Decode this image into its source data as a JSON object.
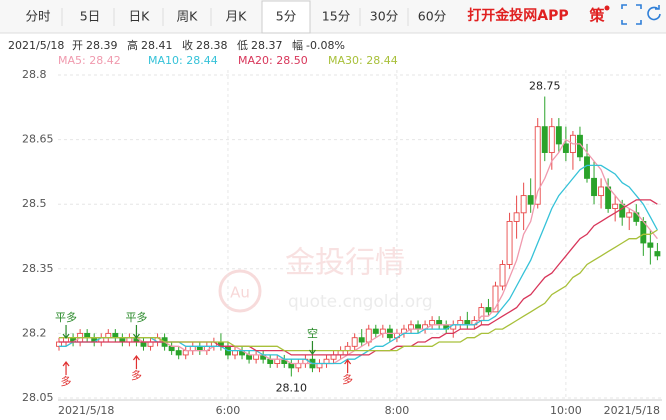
{
  "tabs": [
    "分时",
    "5日",
    "日K",
    "周K",
    "月K",
    "5分",
    "15分",
    "30分",
    "60分"
  ],
  "app_link": "打开金投网APP",
  "strategy": "策",
  "info": {
    "date": "2021/5/18",
    "items": [
      {
        "label": "开",
        "value": "28.39"
      },
      {
        "label": "高",
        "value": "28.41"
      },
      {
        "label": "收",
        "value": "28.38"
      },
      {
        "label": "低",
        "value": "28.37"
      },
      {
        "label": "幅",
        "value": "-0.08%"
      }
    ]
  },
  "watermark": {
    "logo": "Au",
    "brand": "金投行情",
    "url": "quote.cngold.org"
  },
  "chart_data": {
    "type": "candlestick",
    "up_color": "#e84a4a",
    "down_color": "#2aa32a",
    "grid": true,
    "ylim": [
      28.05,
      28.8
    ],
    "yticks": [
      {
        "value": 28.8,
        "label": "28.8"
      },
      28.65,
      {
        "value": 28.5,
        "label": "28.5"
      },
      28.35,
      {
        "value": 28.2,
        "label": "28.2"
      },
      28.05
    ],
    "categories": [
      "2021/5/18",
      null,
      null,
      null,
      null,
      null,
      null,
      null,
      null,
      null,
      null,
      null,
      null,
      null,
      null,
      null,
      null,
      null,
      null,
      null,
      null,
      null,
      null,
      null,
      "6:00",
      null,
      null,
      null,
      null,
      null,
      null,
      null,
      null,
      null,
      null,
      null,
      null,
      null,
      null,
      null,
      null,
      null,
      null,
      null,
      null,
      null,
      null,
      null,
      "8:00",
      null,
      null,
      null,
      null,
      null,
      null,
      null,
      null,
      null,
      null,
      null,
      null,
      null,
      null,
      null,
      null,
      null,
      null,
      null,
      null,
      null,
      null,
      null,
      "10:00",
      null,
      null,
      null,
      null,
      null,
      null,
      null,
      null,
      null,
      null,
      null,
      null,
      "2021/5/18"
    ],
    "open": [
      28.17,
      28.18,
      28.19,
      28.18,
      28.2,
      28.19,
      28.18,
      28.19,
      28.2,
      28.19,
      28.18,
      28.19,
      28.18,
      28.17,
      28.18,
      28.19,
      28.17,
      28.16,
      28.15,
      28.16,
      28.17,
      28.16,
      28.17,
      28.18,
      28.17,
      28.15,
      28.16,
      28.15,
      28.14,
      28.15,
      28.14,
      28.13,
      28.14,
      28.13,
      28.12,
      28.13,
      28.14,
      28.12,
      28.13,
      28.14,
      28.15,
      28.16,
      28.17,
      28.19,
      28.18,
      28.21,
      28.2,
      28.21,
      28.19,
      28.2,
      28.21,
      28.22,
      28.21,
      28.22,
      28.23,
      28.22,
      28.21,
      28.22,
      28.23,
      28.22,
      28.23,
      28.26,
      28.25,
      28.31,
      28.36,
      28.46,
      28.48,
      28.52,
      28.5,
      28.68,
      28.62,
      28.68,
      28.64,
      28.62,
      28.66,
      28.61,
      28.56,
      28.52,
      28.54,
      28.49,
      28.5,
      28.47,
      28.48,
      28.46,
      28.41,
      28.39
    ],
    "high": [
      28.19,
      28.2,
      28.2,
      28.21,
      28.21,
      28.2,
      28.2,
      28.21,
      28.21,
      28.2,
      28.2,
      28.21,
      28.19,
      28.19,
      28.2,
      28.2,
      28.18,
      28.17,
      28.17,
      28.18,
      28.18,
      28.18,
      28.19,
      28.2,
      28.18,
      28.17,
      28.17,
      28.16,
      28.16,
      28.16,
      28.15,
      28.15,
      28.15,
      28.14,
      28.14,
      28.15,
      28.15,
      28.14,
      28.15,
      28.16,
      28.17,
      28.18,
      28.2,
      28.21,
      28.22,
      28.22,
      28.22,
      28.22,
      28.21,
      28.22,
      28.23,
      28.23,
      28.23,
      28.24,
      28.24,
      28.23,
      28.23,
      28.24,
      28.25,
      28.24,
      28.27,
      28.28,
      28.32,
      28.37,
      28.48,
      28.52,
      28.55,
      28.56,
      28.7,
      28.75,
      28.7,
      28.7,
      28.68,
      28.67,
      28.68,
      28.64,
      28.6,
      28.56,
      28.56,
      28.52,
      28.51,
      28.49,
      28.5,
      28.47,
      28.44,
      28.41
    ],
    "low": [
      28.16,
      28.17,
      28.17,
      28.17,
      28.18,
      28.17,
      28.17,
      28.18,
      28.18,
      28.17,
      28.17,
      28.17,
      28.16,
      28.16,
      28.17,
      28.16,
      28.15,
      28.14,
      28.14,
      28.15,
      28.15,
      28.15,
      28.16,
      28.16,
      28.14,
      28.14,
      28.14,
      28.13,
      28.13,
      28.13,
      28.12,
      28.12,
      28.12,
      28.1,
      28.11,
      28.12,
      28.11,
      28.11,
      28.12,
      28.13,
      28.14,
      28.15,
      28.16,
      28.17,
      28.17,
      28.19,
      28.19,
      28.18,
      28.18,
      28.19,
      28.2,
      28.2,
      28.2,
      28.21,
      28.21,
      28.2,
      28.19,
      28.21,
      28.21,
      28.21,
      28.22,
      28.24,
      28.25,
      28.3,
      28.35,
      28.42,
      28.44,
      28.48,
      28.49,
      28.6,
      28.58,
      28.62,
      28.6,
      28.58,
      28.6,
      28.55,
      28.5,
      28.49,
      28.48,
      28.46,
      28.45,
      28.44,
      28.45,
      28.38,
      28.36,
      28.37
    ],
    "close": [
      28.18,
      28.19,
      28.18,
      28.2,
      28.19,
      28.18,
      28.19,
      28.2,
      28.19,
      28.18,
      28.19,
      28.18,
      28.17,
      28.18,
      28.19,
      28.17,
      28.16,
      28.15,
      28.16,
      28.17,
      28.16,
      28.17,
      28.18,
      28.17,
      28.15,
      28.16,
      28.15,
      28.14,
      28.15,
      28.14,
      28.13,
      28.14,
      28.13,
      28.12,
      28.13,
      28.14,
      28.12,
      28.13,
      28.14,
      28.15,
      28.16,
      28.17,
      28.19,
      28.18,
      28.21,
      28.2,
      28.21,
      28.19,
      28.2,
      28.21,
      28.22,
      28.21,
      28.22,
      28.23,
      28.22,
      28.21,
      28.22,
      28.23,
      28.22,
      28.23,
      28.26,
      28.25,
      28.31,
      28.36,
      28.46,
      28.48,
      28.52,
      28.5,
      28.68,
      28.62,
      28.68,
      28.64,
      28.62,
      28.66,
      28.61,
      28.56,
      28.52,
      28.54,
      28.49,
      28.5,
      28.47,
      28.48,
      28.46,
      28.41,
      28.4,
      28.38
    ],
    "series": [
      {
        "name": "MA5: 28.42",
        "color": "#f09aae",
        "values": [
          28.18,
          28.18,
          28.18,
          28.19,
          28.19,
          28.19,
          28.19,
          28.19,
          28.19,
          28.19,
          28.19,
          28.19,
          28.18,
          28.18,
          28.18,
          28.18,
          28.17,
          28.17,
          28.16,
          28.16,
          28.16,
          28.16,
          28.17,
          28.17,
          28.17,
          28.17,
          28.16,
          28.15,
          28.15,
          28.15,
          28.14,
          28.14,
          28.14,
          28.13,
          28.13,
          28.13,
          28.13,
          28.13,
          28.13,
          28.13,
          28.14,
          28.15,
          28.16,
          28.17,
          28.18,
          28.19,
          28.2,
          28.2,
          28.2,
          28.2,
          28.21,
          28.21,
          28.21,
          28.22,
          28.22,
          28.22,
          28.22,
          28.22,
          28.22,
          28.22,
          28.24,
          28.24,
          28.26,
          28.29,
          28.33,
          28.37,
          28.43,
          28.46,
          28.53,
          28.56,
          28.6,
          28.62,
          28.65,
          28.64,
          28.64,
          28.62,
          28.6,
          28.58,
          28.54,
          28.52,
          28.5,
          28.49,
          28.48,
          28.46,
          28.44,
          28.42
        ]
      },
      {
        "name": "MA10: 28.44",
        "color": "#35c2d8",
        "values": [
          28.17,
          28.17,
          28.18,
          28.18,
          28.18,
          28.18,
          28.19,
          28.19,
          28.19,
          28.19,
          28.19,
          28.19,
          28.19,
          28.19,
          28.18,
          28.18,
          28.18,
          28.18,
          28.17,
          28.17,
          28.17,
          28.17,
          28.17,
          28.17,
          28.16,
          28.16,
          28.16,
          28.16,
          28.16,
          28.15,
          28.15,
          28.15,
          28.14,
          28.14,
          28.14,
          28.14,
          28.13,
          28.13,
          28.13,
          28.13,
          28.13,
          28.14,
          28.14,
          28.15,
          28.16,
          28.17,
          28.17,
          28.18,
          28.19,
          28.2,
          28.2,
          28.2,
          28.21,
          28.21,
          28.21,
          28.21,
          28.22,
          28.22,
          28.22,
          28.22,
          28.23,
          28.23,
          28.24,
          28.26,
          28.28,
          28.31,
          28.34,
          28.37,
          28.41,
          28.45,
          28.49,
          28.52,
          28.54,
          28.56,
          28.58,
          28.59,
          28.59,
          28.59,
          28.58,
          28.57,
          28.55,
          28.54,
          28.52,
          28.5,
          28.47,
          28.44
        ]
      },
      {
        "name": "MA20: 28.50",
        "color": "#d8365a",
        "values": [
          28.18,
          28.18,
          28.18,
          28.18,
          28.18,
          28.18,
          28.18,
          28.18,
          28.18,
          28.18,
          28.18,
          28.18,
          28.18,
          28.18,
          28.18,
          28.18,
          28.18,
          28.18,
          28.18,
          28.18,
          28.18,
          28.18,
          28.18,
          28.17,
          28.17,
          28.17,
          28.17,
          28.17,
          28.16,
          28.16,
          28.16,
          28.16,
          28.16,
          28.15,
          28.15,
          28.15,
          28.15,
          28.15,
          28.15,
          28.15,
          28.15,
          28.15,
          28.15,
          28.15,
          28.15,
          28.16,
          28.16,
          28.16,
          28.17,
          28.17,
          28.17,
          28.18,
          28.18,
          28.19,
          28.19,
          28.2,
          28.2,
          28.21,
          28.21,
          28.21,
          28.22,
          28.22,
          28.23,
          28.24,
          28.25,
          28.26,
          28.28,
          28.29,
          28.31,
          28.33,
          28.34,
          28.36,
          28.38,
          28.4,
          28.42,
          28.43,
          28.45,
          28.46,
          28.47,
          28.48,
          28.49,
          28.5,
          28.51,
          28.51,
          28.51,
          28.5
        ]
      },
      {
        "name": "MA30: 28.44",
        "color": "#a8c03a",
        "values": [
          28.19,
          28.19,
          28.19,
          28.19,
          28.19,
          28.19,
          28.19,
          28.19,
          28.19,
          28.19,
          28.19,
          28.19,
          28.19,
          28.19,
          28.19,
          28.18,
          28.18,
          28.18,
          28.18,
          28.18,
          28.18,
          28.18,
          28.18,
          28.18,
          28.18,
          28.17,
          28.17,
          28.17,
          28.17,
          28.17,
          28.17,
          28.17,
          28.16,
          28.16,
          28.16,
          28.16,
          28.16,
          28.16,
          28.16,
          28.16,
          28.16,
          28.16,
          28.16,
          28.16,
          28.16,
          28.16,
          28.16,
          28.16,
          28.16,
          28.17,
          28.17,
          28.17,
          28.17,
          28.17,
          28.18,
          28.18,
          28.18,
          28.18,
          28.19,
          28.19,
          28.2,
          28.2,
          28.21,
          28.21,
          28.22,
          28.23,
          28.24,
          28.25,
          28.26,
          28.27,
          28.29,
          28.3,
          28.31,
          28.33,
          28.34,
          28.36,
          28.37,
          28.38,
          28.39,
          28.4,
          28.41,
          28.42,
          28.42,
          28.43,
          28.43,
          28.44
        ]
      }
    ],
    "annotations": [
      {
        "text": "28.75"
      },
      {
        "text": "28.10"
      }
    ],
    "signals": [
      {
        "text": "平多",
        "color": "#2a8a2a"
      },
      {
        "text": "多",
        "color": "#e03030"
      },
      {
        "text": "平多",
        "color": "#2a8a2a"
      },
      {
        "text": "多",
        "color": "#e03030"
      },
      {
        "text": "空",
        "color": "#2a8a2a"
      },
      {
        "text": "多",
        "color": "#e03030"
      }
    ]
  }
}
